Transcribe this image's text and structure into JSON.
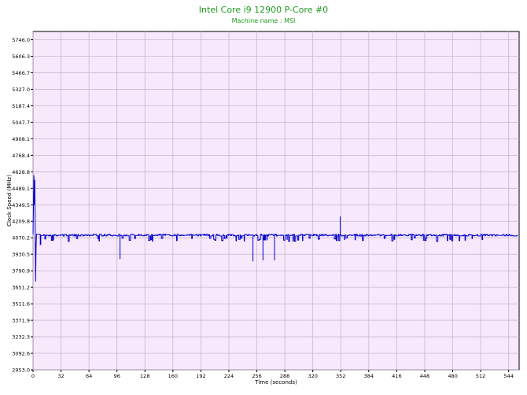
{
  "chart_data": {
    "type": "line",
    "title": "Intel Core i9 12900 P-Core #0",
    "subtitle": "Machine name : MSI",
    "xlabel": "Time (seconds)",
    "ylabel": "Clock Speed (MHz)",
    "xlim": [
      0,
      556
    ],
    "ylim": [
      2953.0,
      5816.0
    ],
    "grid": true,
    "xticks": [
      0,
      32,
      64,
      96,
      128,
      160,
      192,
      224,
      256,
      288,
      320,
      352,
      384,
      416,
      448,
      480,
      512,
      544
    ],
    "yticks": [
      "2953.0",
      "3092.6",
      "3232.3",
      "3371.9",
      "3511.6",
      "3651.2",
      "3790.9",
      "3930.5",
      "4070.2",
      "4209.8",
      "4349.5",
      "4489.1",
      "4628.8",
      "4768.4",
      "4908.1",
      "5047.7",
      "5187.4",
      "5327.0",
      "5466.7",
      "5606.3",
      "5746.0"
    ],
    "series": [
      {
        "values_low": 4000,
        "values_high": 4100,
        "samples": [
          [
            0,
            4100
          ],
          [
            1,
            4600
          ],
          [
            1.5,
            4350
          ],
          [
            2,
            4560
          ],
          [
            2.5,
            4100
          ],
          [
            3,
            3700
          ],
          [
            3.5,
            4000
          ],
          [
            4,
            4100
          ],
          [
            8,
            4100
          ],
          [
            99,
            3890
          ],
          [
            100,
            4100
          ],
          [
            250,
            3870
          ],
          [
            251,
            4100
          ],
          [
            262,
            3880
          ],
          [
            263,
            4100
          ],
          [
            275,
            3880
          ],
          [
            276,
            4100
          ],
          [
            351,
            4250
          ],
          [
            352,
            4100
          ],
          [
            380,
            4080
          ],
          [
            420,
            4080
          ],
          [
            460,
            4080
          ],
          [
            500,
            4080
          ],
          [
            550,
            4080
          ]
        ]
      }
    ]
  },
  "colors": {
    "background": "#f7e8fb",
    "grid": "#c8b8d0",
    "line": "#0000cc",
    "title": "#1f9a1f"
  }
}
